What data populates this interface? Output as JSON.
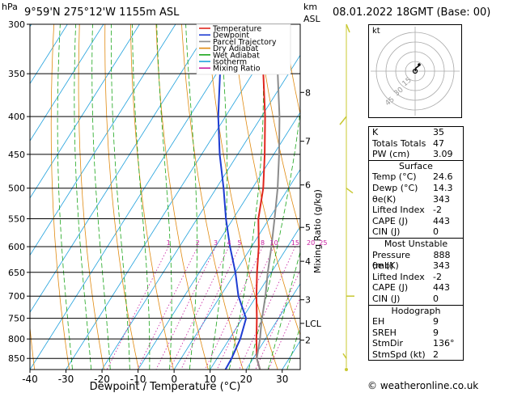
{
  "header": {
    "hpa_label": "hPa",
    "location": "9°59'N  275°12'W  1155m  ASL",
    "km_label": "km",
    "asl_label": "ASL",
    "datetime": "08.01.2022  18GMT  (Base: 00)"
  },
  "legend": {
    "items": [
      {
        "label": "Temperature",
        "color": "#e0261e"
      },
      {
        "label": "Dewpoint",
        "color": "#1e3cd2"
      },
      {
        "label": "Parcel Trajectory",
        "color": "#8c8c8c"
      },
      {
        "label": "Dry Adiabat",
        "color": "#e08a10"
      },
      {
        "label": "Wet Adiabat",
        "color": "#1aa51a"
      },
      {
        "label": "Isotherm",
        "color": "#1ea0dc"
      },
      {
        "label": "Mixing Ratio",
        "color": "#c81ea0"
      }
    ]
  },
  "chart_data": {
    "type": "line",
    "xlabel": "Dewpoint / Temperature (°C)",
    "ylabel": "hPa",
    "y2label": "Mixing Ratio (g/kg)",
    "x_ticks": [
      -40,
      -30,
      -20,
      -10,
      0,
      10,
      20,
      30
    ],
    "x_range": [
      -40,
      35
    ],
    "pressure_levels": [
      300,
      350,
      400,
      450,
      500,
      550,
      600,
      650,
      700,
      750,
      800,
      850
    ],
    "pressure_range": [
      300,
      880
    ],
    "km_labels": [
      {
        "label": "8",
        "p": 371
      },
      {
        "label": "7",
        "p": 432
      },
      {
        "label": "6",
        "p": 495
      },
      {
        "label": "5",
        "p": 565
      },
      {
        "label": "4",
        "p": 628
      },
      {
        "label": "3",
        "p": 708
      },
      {
        "label": "LCL",
        "p": 762
      },
      {
        "label": "2",
        "p": 803
      }
    ],
    "mixing_ratio_labels": [
      "1",
      "2",
      "3",
      "4",
      "5",
      "8",
      "10",
      "15",
      "20",
      "25"
    ],
    "mixing_ratio_values": [
      1,
      2,
      3,
      4,
      5,
      8,
      10,
      15,
      20,
      25
    ],
    "series": [
      {
        "name": "Temperature",
        "color": "#e0261e",
        "points": [
          [
            888,
            24.6
          ],
          [
            850,
            21
          ],
          [
            800,
            17.5
          ],
          [
            750,
            14
          ],
          [
            700,
            10
          ],
          [
            650,
            6
          ],
          [
            600,
            2
          ],
          [
            550,
            -3
          ],
          [
            500,
            -7
          ],
          [
            450,
            -12.5
          ],
          [
            400,
            -19
          ],
          [
            350,
            -27
          ],
          [
            300,
            -35
          ]
        ]
      },
      {
        "name": "Dewpoint",
        "color": "#1e3cd2",
        "points": [
          [
            888,
            14.3
          ],
          [
            850,
            14
          ],
          [
            800,
            13
          ],
          [
            750,
            11
          ],
          [
            700,
            5
          ],
          [
            650,
            0
          ],
          [
            600,
            -6
          ],
          [
            550,
            -12
          ],
          [
            500,
            -18
          ],
          [
            450,
            -25
          ],
          [
            400,
            -32
          ],
          [
            350,
            -39
          ],
          [
            300,
            -46
          ]
        ]
      },
      {
        "name": "Parcel Trajectory",
        "color": "#8c8c8c",
        "points": [
          [
            888,
            24.6
          ],
          [
            850,
            21
          ],
          [
            800,
            18.5
          ],
          [
            760,
            16
          ],
          [
            700,
            12.5
          ],
          [
            650,
            9
          ],
          [
            600,
            5.5
          ],
          [
            550,
            1.5
          ],
          [
            500,
            -3
          ],
          [
            450,
            -8.5
          ],
          [
            400,
            -15
          ],
          [
            350,
            -23
          ],
          [
            300,
            -32
          ]
        ]
      }
    ]
  },
  "hodograph": {
    "label": "kt",
    "ring_labels": [
      "15",
      "30",
      "45"
    ]
  },
  "indices": {
    "rows": [
      {
        "label": "K",
        "value": "35"
      },
      {
        "label": "Totals Totals",
        "value": "47"
      },
      {
        "label": "PW (cm)",
        "value": "3.09"
      }
    ]
  },
  "surface": {
    "title": "Surface",
    "rows": [
      {
        "label": "Temp (°C)",
        "value": "24.6"
      },
      {
        "label": "Dewp (°C)",
        "value": "14.3"
      },
      {
        "label": "θe(K)",
        "value": "343"
      },
      {
        "label": "Lifted Index",
        "value": "-2"
      },
      {
        "label": "CAPE (J)",
        "value": "443"
      },
      {
        "label": "CIN (J)",
        "value": "0"
      }
    ]
  },
  "most_unstable": {
    "title": "Most Unstable",
    "rows": [
      {
        "label": "Pressure (mb)",
        "value": "888"
      },
      {
        "label": "θe (K)",
        "value": "343"
      },
      {
        "label": "Lifted Index",
        "value": "-2"
      },
      {
        "label": "CAPE (J)",
        "value": "443"
      },
      {
        "label": "CIN (J)",
        "value": "0"
      }
    ]
  },
  "hodograph_stats": {
    "title": "Hodograph",
    "rows": [
      {
        "label": "EH",
        "value": "9"
      },
      {
        "label": "SREH",
        "value": "9"
      },
      {
        "label": "StmDir",
        "value": "136°"
      },
      {
        "label": "StmSpd (kt)",
        "value": "2"
      }
    ]
  },
  "credit": "© weatheronline.co.uk"
}
